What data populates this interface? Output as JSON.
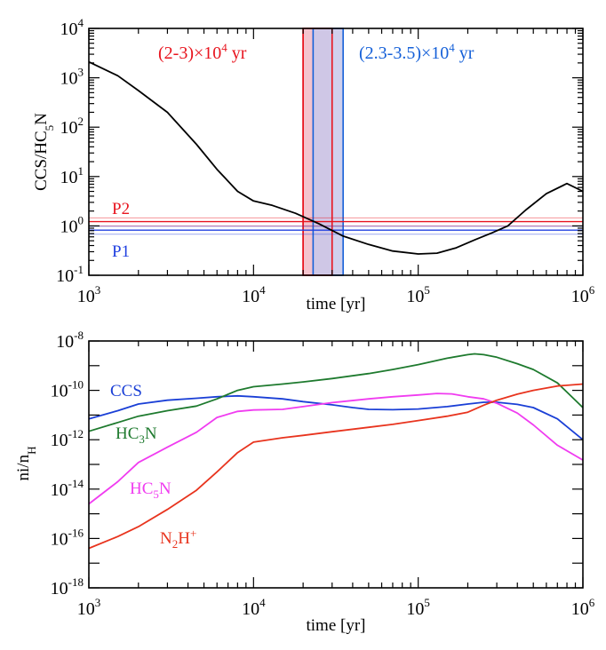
{
  "chart_data": [
    {
      "type": "line",
      "ylabel": "CCS/HC5N",
      "xlabel": "time [yr]",
      "xscale": "log",
      "yscale": "log",
      "xlim": [
        1000,
        1000000
      ],
      "ylim": [
        0.1,
        10000
      ],
      "x_ticks": [
        {
          "base": "10",
          "exp": "3"
        },
        {
          "base": "10",
          "exp": "4"
        },
        {
          "base": "10",
          "exp": "5"
        },
        {
          "base": "10",
          "exp": "6"
        }
      ],
      "y_ticks": [
        {
          "base": "10",
          "exp": "-1"
        },
        {
          "base": "10",
          "exp": "0"
        },
        {
          "base": "10",
          "exp": "1"
        },
        {
          "base": "10",
          "exp": "2"
        },
        {
          "base": "10",
          "exp": "3"
        },
        {
          "base": "10",
          "exp": "4"
        }
      ],
      "series": [
        {
          "color": "#000000",
          "x": [
            1000,
            1500,
            2000,
            3000,
            4500,
            6000,
            8000,
            10000,
            13000,
            18000,
            25000,
            35000,
            50000,
            70000,
            100000,
            130000,
            170000,
            220000,
            280000,
            350000,
            450000,
            600000,
            800000,
            1000000
          ],
          "y": [
            2100,
            1100,
            550,
            200,
            45,
            14,
            5.0,
            3.2,
            2.6,
            1.8,
            1.1,
            0.62,
            0.42,
            0.31,
            0.27,
            0.28,
            0.36,
            0.52,
            0.72,
            1.0,
            2.1,
            4.5,
            7.2,
            5.0
          ]
        }
      ],
      "annotations": {
        "red_band": {
          "label": "(2-3)×10",
          "exp": "4",
          "unit": " yr",
          "x_range": [
            20000,
            30000
          ],
          "color": "#e8141e",
          "fill": "#f4c4ce"
        },
        "blue_band": {
          "label": "(2.3-3.5)×10",
          "exp": "4",
          "unit": " yr",
          "x_range": [
            23000,
            35000
          ],
          "color": "#1560d8",
          "fill": "#c8c8ea"
        },
        "P2": {
          "label": "P2",
          "value": 1.22,
          "spread": [
            1.0,
            1.45
          ],
          "color": "#e8141e"
        },
        "P1": {
          "label": "P1",
          "value": 0.82,
          "spread": [
            0.68,
            0.98
          ],
          "color": "#2040e0"
        }
      }
    },
    {
      "type": "line",
      "ylabel": "ni/nH",
      "xlabel": "time [yr]",
      "xscale": "log",
      "yscale": "log",
      "xlim": [
        1000,
        1000000
      ],
      "ylim": [
        1e-18,
        1e-08
      ],
      "x_ticks": [
        {
          "base": "10",
          "exp": "3"
        },
        {
          "base": "10",
          "exp": "4"
        },
        {
          "base": "10",
          "exp": "5"
        },
        {
          "base": "10",
          "exp": "6"
        }
      ],
      "y_ticks": [
        {
          "base": "10",
          "exp": "-18"
        },
        {
          "base": "10",
          "exp": "-16"
        },
        {
          "base": "10",
          "exp": "-14"
        },
        {
          "base": "10",
          "exp": "-12"
        },
        {
          "base": "10",
          "exp": "-10"
        },
        {
          "base": "10",
          "exp": "-8"
        }
      ],
      "series": [
        {
          "name": "CCS",
          "color": "#1a3fd6",
          "x": [
            1000,
            1500,
            2000,
            3000,
            4500,
            6000,
            8000,
            10000,
            15000,
            20000,
            30000,
            40000,
            50000,
            70000,
            100000,
            150000,
            200000,
            250000,
            300000,
            400000,
            500000,
            700000,
            1000000
          ],
          "y": [
            7e-12,
            1.5e-11,
            2.8e-11,
            4e-11,
            4.8e-11,
            5.5e-11,
            6e-11,
            5.5e-11,
            4.5e-11,
            3.5e-11,
            2.6e-11,
            2e-11,
            1.7e-11,
            1.65e-11,
            1.75e-11,
            2.2e-11,
            2.8e-11,
            3.3e-11,
            3.3e-11,
            2.7e-11,
            2e-11,
            7e-12,
            1e-12
          ]
        },
        {
          "name": "HC3N",
          "color": "#1e7a2e",
          "x": [
            1000,
            1500,
            2000,
            3000,
            4500,
            6000,
            8000,
            10000,
            15000,
            20000,
            30000,
            50000,
            70000,
            100000,
            150000,
            200000,
            220000,
            250000,
            300000,
            400000,
            500000,
            700000,
            1000000
          ],
          "y": [
            2.2e-12,
            5e-12,
            9e-12,
            1.5e-11,
            2.3e-11,
            4.5e-11,
            1e-10,
            1.4e-10,
            1.8e-10,
            2.2e-10,
            3e-10,
            4.8e-10,
            7e-10,
            1.1e-09,
            2e-09,
            2.8e-09,
            3e-09,
            2.8e-09,
            2.2e-09,
            1.2e-09,
            7e-10,
            2e-10,
            2e-11
          ]
        },
        {
          "name": "HC5N",
          "color": "#f03cf0",
          "x": [
            1000,
            1500,
            2000,
            3000,
            4500,
            6000,
            8000,
            10000,
            15000,
            20000,
            30000,
            50000,
            70000,
            100000,
            130000,
            160000,
            200000,
            250000,
            300000,
            400000,
            500000,
            700000,
            1000000
          ],
          "y": [
            2.5e-15,
            2e-14,
            1.2e-13,
            5e-13,
            2e-12,
            8e-12,
            1.4e-11,
            1.6e-11,
            1.7e-11,
            2.2e-11,
            3.2e-11,
            4.5e-11,
            5.5e-11,
            6.5e-11,
            7.5e-11,
            7.2e-11,
            5.5e-11,
            4.5e-11,
            3e-11,
            1.2e-11,
            4e-12,
            6e-13,
            1.5e-13
          ]
        },
        {
          "name": "N2H+",
          "color": "#e8341e",
          "x": [
            1000,
            1500,
            2000,
            3000,
            4500,
            6000,
            8000,
            10000,
            15000,
            20000,
            30000,
            50000,
            70000,
            100000,
            150000,
            200000,
            250000,
            300000,
            400000,
            500000,
            700000,
            1000000
          ],
          "y": [
            4e-17,
            1.2e-16,
            3e-16,
            1.5e-15,
            9e-15,
            5e-14,
            3e-13,
            8e-13,
            1.2e-12,
            1.5e-12,
            2.1e-12,
            3.2e-12,
            4.2e-12,
            6e-12,
            9e-12,
            1.3e-11,
            2.5e-11,
            4e-11,
            7e-11,
            1e-10,
            1.5e-10,
            1.8e-10
          ]
        }
      ],
      "series_labels": {
        "CCS": {
          "text": "CCS",
          "sub": "",
          "rest": ""
        },
        "HC3N": {
          "text": "HC",
          "sub": "3",
          "rest": "N"
        },
        "HC5N": {
          "text": "HC",
          "sub": "5",
          "rest": "N"
        },
        "N2H+": {
          "text": "N",
          "sub": "2",
          "rest": "H",
          "sup": "+"
        }
      }
    }
  ]
}
